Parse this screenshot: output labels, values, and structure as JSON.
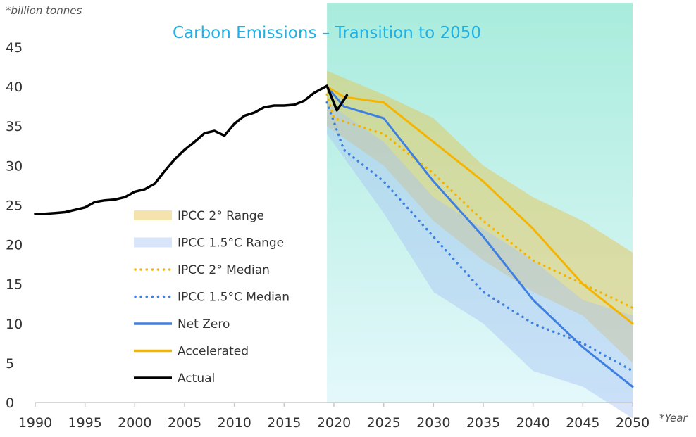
{
  "chart_data": {
    "type": "line",
    "title": "Carbon Emissions – Transition to 2050",
    "y_unit_label": "*billion tonnes",
    "x_unit_label": "*Year",
    "xlim": [
      1990,
      2050
    ],
    "ylim": [
      0,
      45
    ],
    "x_ticks": [
      1990,
      1995,
      2000,
      2005,
      2010,
      2015,
      2020,
      2025,
      2030,
      2035,
      2040,
      2045,
      2050
    ],
    "y_ticks": [
      0,
      5,
      10,
      15,
      20,
      25,
      30,
      35,
      40,
      45
    ],
    "grid": false,
    "legend_position": "center-left",
    "highlight_region": {
      "x_start": 2019.3,
      "x_end": 2050,
      "color_top": "#a8ecdc",
      "color_bottom": "#e4f8fb"
    },
    "bands": [
      {
        "name": "IPCC 2° Range",
        "color": "#e6c24a",
        "opacity": 0.45,
        "x": [
          2019.3,
          2025,
          2030,
          2035,
          2040,
          2045,
          2050
        ],
        "upper": [
          42,
          39,
          36,
          30,
          26,
          23,
          19
        ],
        "lower": [
          35,
          30,
          23,
          18,
          14,
          11,
          5
        ]
      },
      {
        "name": "IPCC 1.5°C Range",
        "color": "#a9c4f5",
        "opacity": 0.45,
        "x": [
          2019.3,
          2025,
          2030,
          2035,
          2040,
          2045,
          2050
        ],
        "upper": [
          38,
          33,
          26,
          22,
          18,
          13,
          11
        ],
        "lower": [
          34,
          24,
          14,
          10,
          4,
          2,
          -2
        ]
      }
    ],
    "series": [
      {
        "name": "IPCC 2° Median",
        "color": "#f5b400",
        "style": "dotted",
        "x": [
          2019.3,
          2020,
          2025,
          2030,
          2035,
          2040,
          2045,
          2050
        ],
        "y": [
          39,
          36,
          34,
          29,
          23,
          18,
          15,
          12
        ]
      },
      {
        "name": "IPCC 1.5°C Median",
        "color": "#3f7fe0",
        "style": "dotted",
        "x": [
          2019.3,
          2021,
          2025,
          2030,
          2035,
          2040,
          2045,
          2050
        ],
        "y": [
          38,
          32,
          28,
          21,
          14,
          10,
          7.5,
          4
        ]
      },
      {
        "name": "Net Zero",
        "color": "#3f7fe0",
        "style": "solid",
        "x": [
          2019.3,
          2021,
          2025,
          2030,
          2035,
          2040,
          2045,
          2050
        ],
        "y": [
          40,
          37.5,
          36,
          28,
          21,
          13,
          7,
          2
        ]
      },
      {
        "name": "Accelerated",
        "color": "#f5b400",
        "style": "solid",
        "x": [
          2019.3,
          2021,
          2025,
          2030,
          2035,
          2040,
          2045,
          2050
        ],
        "y": [
          40,
          38.7,
          38,
          33,
          28,
          22,
          15,
          10
        ]
      },
      {
        "name": "Actual",
        "color": "#000000",
        "style": "solid",
        "x": [
          1990,
          1991,
          1992,
          1993,
          1994,
          1995,
          1996,
          1997,
          1998,
          1999,
          2000,
          2001,
          2002,
          2003,
          2004,
          2005,
          2006,
          2007,
          2008,
          2009,
          2010,
          2011,
          2012,
          2013,
          2014,
          2015,
          2016,
          2017,
          2018,
          2019.3,
          2020.3,
          2021.3
        ],
        "y": [
          23.9,
          23.9,
          24.0,
          24.1,
          24.4,
          24.7,
          25.4,
          25.6,
          25.7,
          26.0,
          26.7,
          27.0,
          27.7,
          29.3,
          30.8,
          32.0,
          33.0,
          34.1,
          34.4,
          33.8,
          35.3,
          36.3,
          36.7,
          37.4,
          37.6,
          37.6,
          37.7,
          38.2,
          39.2,
          40.1,
          37.0,
          38.9
        ]
      }
    ],
    "legend": [
      {
        "label": "IPCC 2° Range",
        "kind": "band",
        "color": "#e6c24a"
      },
      {
        "label": "IPCC 1.5°C Range",
        "kind": "band",
        "color": "#a9c4f5"
      },
      {
        "label": "IPCC 2° Median",
        "kind": "dotted",
        "color": "#f5b400"
      },
      {
        "label": "IPCC 1.5°C Median",
        "kind": "dotted",
        "color": "#3f7fe0"
      },
      {
        "label": "Net Zero",
        "kind": "solid",
        "color": "#3f7fe0"
      },
      {
        "label": "Accelerated",
        "kind": "solid",
        "color": "#f5b400"
      },
      {
        "label": "Actual",
        "kind": "solid",
        "color": "#000000"
      }
    ],
    "title_color": "#1eb0e6",
    "axis_color": "#c8c8c8"
  }
}
